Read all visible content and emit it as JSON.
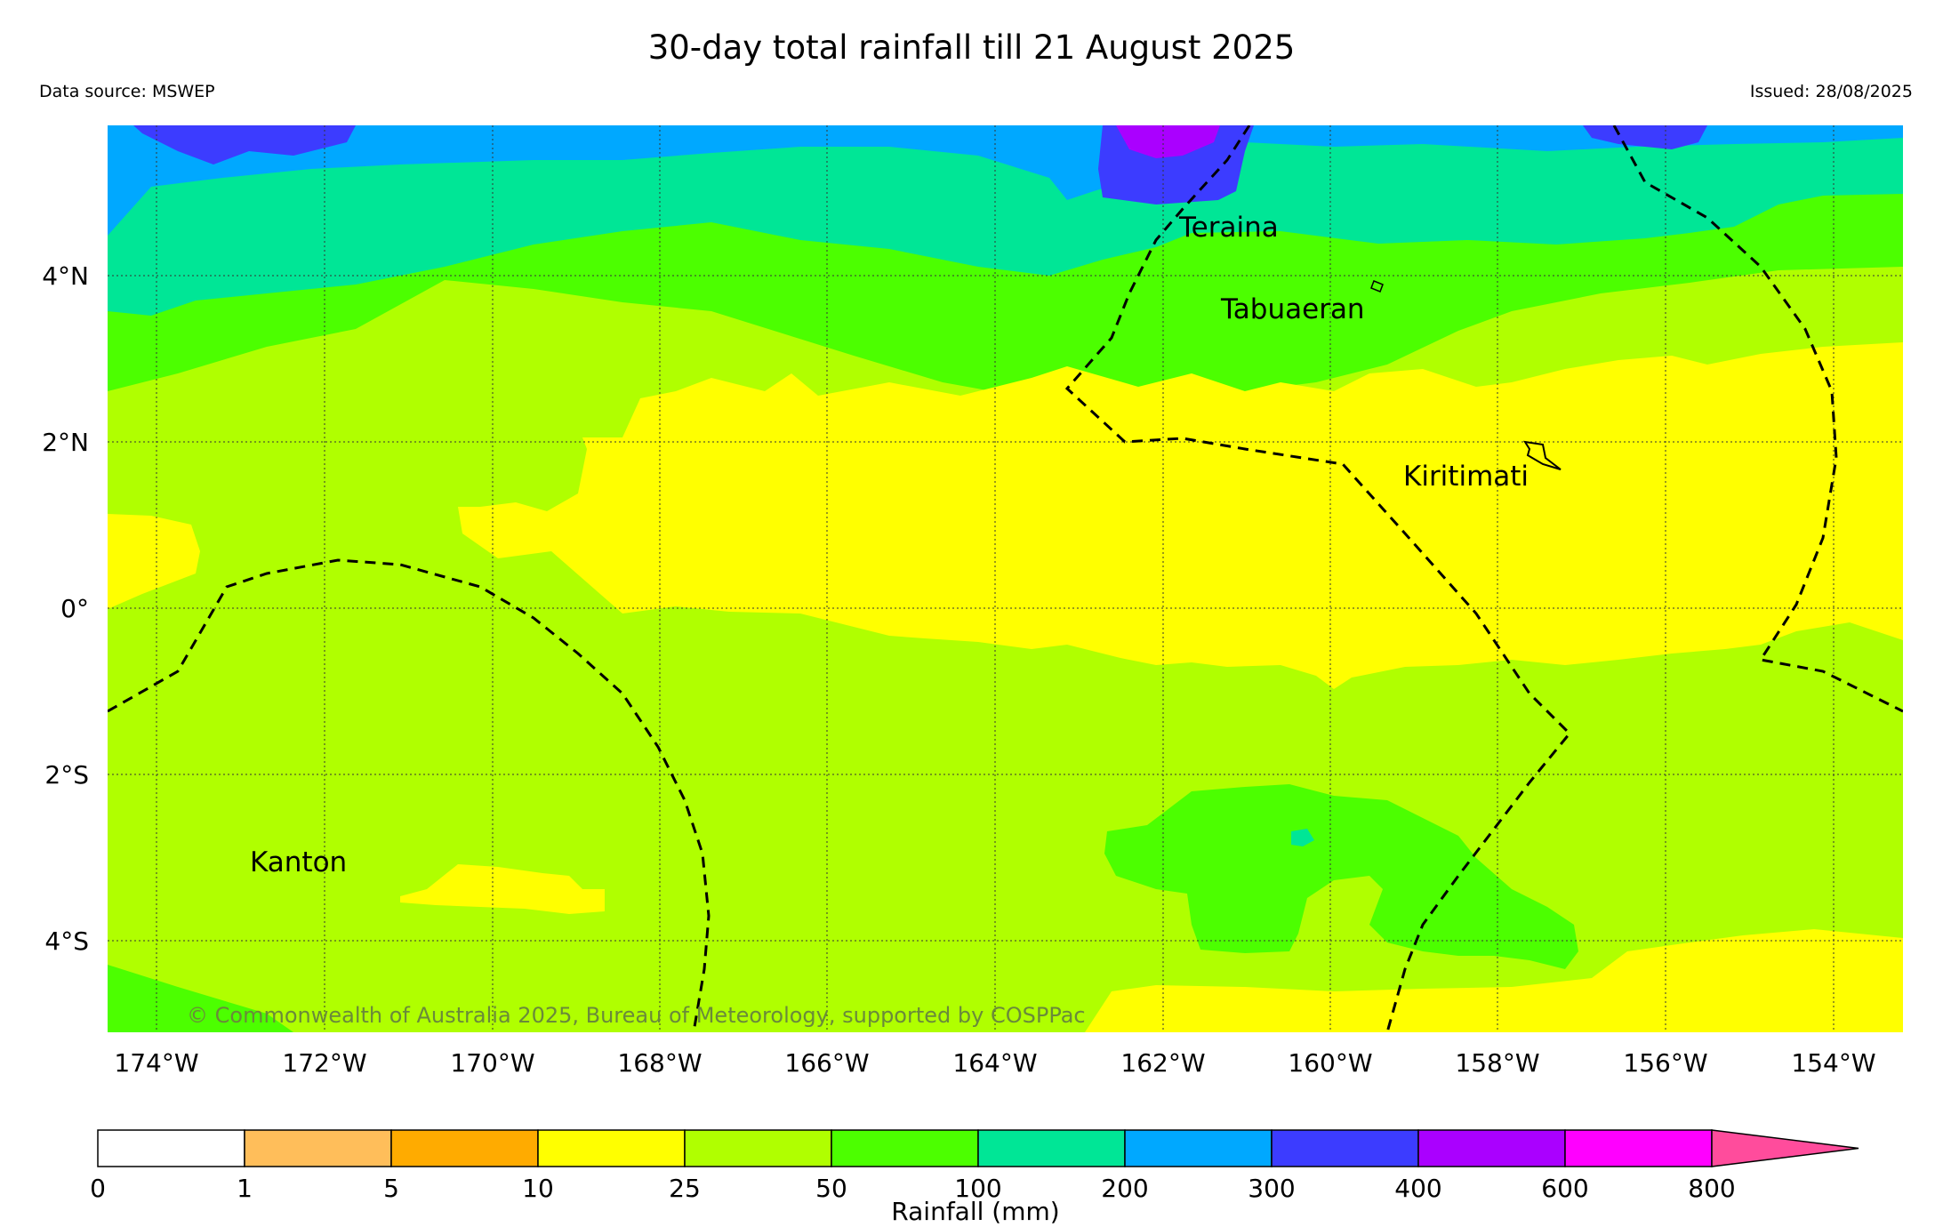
{
  "title": "30-day total rainfall till 21 August 2025",
  "source": "Data source: MSWEP",
  "issued": "Issued: 28/08/2025",
  "copyright": "© Commonwealth of Australia 2025, Bureau of Meteorology, supported by COSPPac",
  "lon_ticks": [
    "174°W",
    "172°W",
    "170°W",
    "168°W",
    "166°W",
    "164°W",
    "162°W",
    "160°W",
    "158°W",
    "156°W",
    "154°W"
  ],
  "lat_ticks": [
    "4°N",
    "2°N",
    "0°",
    "2°S",
    "4°S"
  ],
  "places": [
    "Teraina",
    "Tabuaeran",
    "Kiritimati",
    "Kanton"
  ],
  "colorbar": {
    "label": "Rainfall (mm)",
    "ticks": [
      "0",
      "1",
      "5",
      "10",
      "25",
      "50",
      "100",
      "200",
      "300",
      "400",
      "600",
      "800"
    ],
    "colors": [
      "#ffffff",
      "#ffbe5a",
      "#ffab00",
      "#ffff00",
      "#b0ff00",
      "#4cff00",
      "#00e696",
      "#00a8ff",
      "#3c3cff",
      "#aa00ff",
      "#ff00ff"
    ],
    "extend_color": "#ff4c9c"
  }
}
